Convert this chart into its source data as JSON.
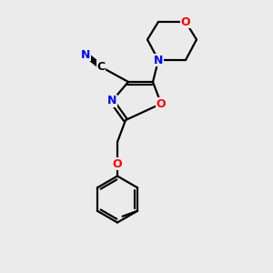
{
  "bg_color": "#ebebeb",
  "bond_color": "#000000",
  "N_color": "#0000ff",
  "O_color": "#ff0000",
  "C_color": "#000000",
  "line_width": 1.6,
  "figsize": [
    3.0,
    3.0
  ],
  "dpi": 100,
  "xlim": [
    0,
    10
  ],
  "ylim": [
    0,
    10
  ]
}
